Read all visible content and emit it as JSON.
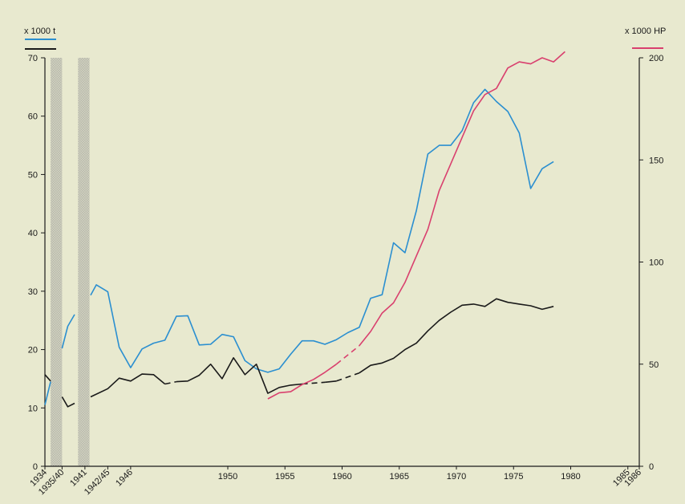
{
  "chart_data": {
    "type": "line",
    "title": "",
    "left_axis": {
      "unit_label": "x 1000 t",
      "range": [
        0,
        70
      ],
      "ticks": [
        0,
        10,
        20,
        30,
        40,
        50,
        60,
        70
      ]
    },
    "right_axis": {
      "unit_label": "x 1000 HP",
      "range": [
        0,
        200
      ],
      "ticks": [
        0,
        50,
        100,
        150,
        200
      ]
    },
    "x_axis": {
      "range": [
        1934,
        1986
      ],
      "year_ticks": [
        1950,
        1955,
        1960,
        1965,
        1970,
        1975,
        1980
      ],
      "special_labels": [
        {
          "x": 1934,
          "label": "1934"
        },
        {
          "x": 1935.5,
          "label": "1935/40"
        },
        {
          "x": 1937.5,
          "label": "1941"
        },
        {
          "x": 1939.5,
          "label": "1942/45"
        },
        {
          "x": 1941.5,
          "label": "1946"
        },
        {
          "x": 1985,
          "label": "1985"
        },
        {
          "x": 1986,
          "label": "1986"
        }
      ]
    },
    "gap_bands": [
      [
        1934.5,
        1935.5
      ],
      [
        1936.9,
        1937.9
      ]
    ],
    "grid": false,
    "colors": {
      "blue": "#2b8fd0",
      "black": "#1a1a1a",
      "red": "#d9406e",
      "band": "#b7b7ad"
    },
    "series": [
      {
        "color": "blue",
        "axis": "left",
        "segments": [
          {
            "dashed": false,
            "points": [
              [
                1934,
                10.5
              ],
              [
                1934.5,
                14.5
              ]
            ]
          },
          {
            "dashed": false,
            "points": [
              [
                1935.5,
                20.2
              ],
              [
                1936,
                24
              ],
              [
                1936.6,
                26
              ]
            ]
          },
          {
            "dashed": false,
            "points": [
              [
                1938,
                29.3
              ],
              [
                1938.5,
                31.1
              ],
              [
                1939.5,
                29.9
              ],
              [
                1940.5,
                20.4
              ],
              [
                1941.5,
                16.9
              ],
              [
                1942.5,
                20.1
              ],
              [
                1943.5,
                21.1
              ],
              [
                1944.5,
                21.6
              ],
              [
                1945.5,
                25.7
              ],
              [
                1946.5,
                25.8
              ],
              [
                1947.5,
                20.8
              ],
              [
                1948.5,
                20.9
              ],
              [
                1949.5,
                22.6
              ],
              [
                1950.5,
                22.2
              ],
              [
                1951.5,
                18.1
              ],
              [
                1952.5,
                16.7
              ],
              [
                1953.5,
                16.1
              ],
              [
                1954.5,
                16.7
              ],
              [
                1955.5,
                19.2
              ],
              [
                1956.5,
                21.5
              ],
              [
                1957.5,
                21.5
              ],
              [
                1958.5,
                20.9
              ],
              [
                1959.5,
                21.7
              ],
              [
                1960.5,
                22.9
              ],
              [
                1961.5,
                23.8
              ],
              [
                1962.5,
                28.8
              ],
              [
                1963.5,
                29.4
              ],
              [
                1964.5,
                38.3
              ],
              [
                1965.5,
                36.6
              ],
              [
                1966.5,
                43.8
              ],
              [
                1967.5,
                53.5
              ],
              [
                1968.5,
                55
              ],
              [
                1969.5,
                55
              ],
              [
                1970.5,
                57.5
              ],
              [
                1971.5,
                62.3
              ],
              [
                1972.5,
                64.6
              ],
              [
                1973.5,
                62.5
              ],
              [
                1974.5,
                60.8
              ],
              [
                1975.5,
                57.1
              ],
              [
                1976.5,
                47.6
              ],
              [
                1977.5,
                51
              ],
              [
                1978.5,
                52.2
              ]
            ]
          }
        ]
      },
      {
        "color": "black",
        "axis": "left",
        "segments": [
          {
            "dashed": false,
            "points": [
              [
                1934,
                15.7
              ],
              [
                1934.5,
                14.6
              ]
            ]
          },
          {
            "dashed": false,
            "points": [
              [
                1935.5,
                11.9
              ],
              [
                1936,
                10.2
              ],
              [
                1936.6,
                10.8
              ]
            ]
          },
          {
            "dashed": false,
            "points": [
              [
                1938,
                11.9
              ],
              [
                1939.5,
                13.3
              ],
              [
                1940.5,
                15.1
              ],
              [
                1941.5,
                14.6
              ],
              [
                1942.5,
                15.8
              ],
              [
                1943.5,
                15.7
              ],
              [
                1944.5,
                14.1
              ]
            ]
          },
          {
            "dashed": true,
            "points": [
              [
                1944.5,
                14.1
              ],
              [
                1945.5,
                14.5
              ]
            ]
          },
          {
            "dashed": false,
            "points": [
              [
                1945.5,
                14.5
              ],
              [
                1946.5,
                14.6
              ],
              [
                1947.5,
                15.6
              ],
              [
                1948.5,
                17.5
              ],
              [
                1949.5,
                15
              ],
              [
                1950.5,
                18.6
              ],
              [
                1951.5,
                15.7
              ],
              [
                1952.5,
                17.5
              ],
              [
                1953.5,
                12.5
              ],
              [
                1954.5,
                13.5
              ],
              [
                1955.5,
                13.9
              ],
              [
                1956.5,
                14.1
              ]
            ]
          },
          {
            "dashed": true,
            "points": [
              [
                1956.5,
                14.1
              ],
              [
                1958.5,
                14.4
              ]
            ]
          },
          {
            "dashed": false,
            "points": [
              [
                1958.5,
                14.4
              ],
              [
                1959.5,
                14.6
              ]
            ]
          },
          {
            "dashed": true,
            "points": [
              [
                1959.5,
                14.6
              ],
              [
                1961.5,
                16
              ]
            ]
          },
          {
            "dashed": false,
            "points": [
              [
                1961.5,
                16
              ],
              [
                1962.5,
                17.3
              ],
              [
                1963.5,
                17.7
              ],
              [
                1964.5,
                18.5
              ],
              [
                1965.5,
                20
              ],
              [
                1966.5,
                21.1
              ],
              [
                1967.5,
                23.2
              ],
              [
                1968.5,
                25
              ],
              [
                1969.5,
                26.4
              ],
              [
                1970.5,
                27.6
              ],
              [
                1971.5,
                27.8
              ],
              [
                1972.5,
                27.4
              ],
              [
                1973.5,
                28.7
              ],
              [
                1974.5,
                28.1
              ],
              [
                1975.5,
                27.8
              ],
              [
                1976.5,
                27.5
              ],
              [
                1977.5,
                26.9
              ],
              [
                1978.5,
                27.4
              ]
            ]
          }
        ]
      },
      {
        "color": "red",
        "axis": "right",
        "segments": [
          {
            "dashed": false,
            "points": [
              [
                1953.5,
                33
              ],
              [
                1954.5,
                36
              ],
              [
                1955.5,
                36.5
              ],
              [
                1956.5,
                40
              ],
              [
                1957.5,
                42.5
              ],
              [
                1958.5,
                46
              ],
              [
                1959.5,
                50
              ]
            ]
          },
          {
            "dashed": true,
            "points": [
              [
                1959.5,
                50
              ],
              [
                1961.5,
                59
              ]
            ]
          },
          {
            "dashed": false,
            "points": [
              [
                1961.5,
                59
              ],
              [
                1962.5,
                66
              ],
              [
                1963.5,
                75
              ],
              [
                1964.5,
                80
              ],
              [
                1965.5,
                90
              ],
              [
                1966.5,
                103
              ],
              [
                1967.5,
                116
              ],
              [
                1968.5,
                135
              ],
              [
                1969.5,
                148
              ],
              [
                1970.5,
                161
              ],
              [
                1971.5,
                174
              ],
              [
                1972.5,
                182
              ],
              [
                1973.5,
                185
              ],
              [
                1974.5,
                195
              ],
              [
                1975.5,
                198
              ],
              [
                1976.5,
                197
              ],
              [
                1977.5,
                200
              ],
              [
                1978.5,
                198
              ],
              [
                1979.5,
                203
              ]
            ]
          }
        ]
      }
    ]
  }
}
